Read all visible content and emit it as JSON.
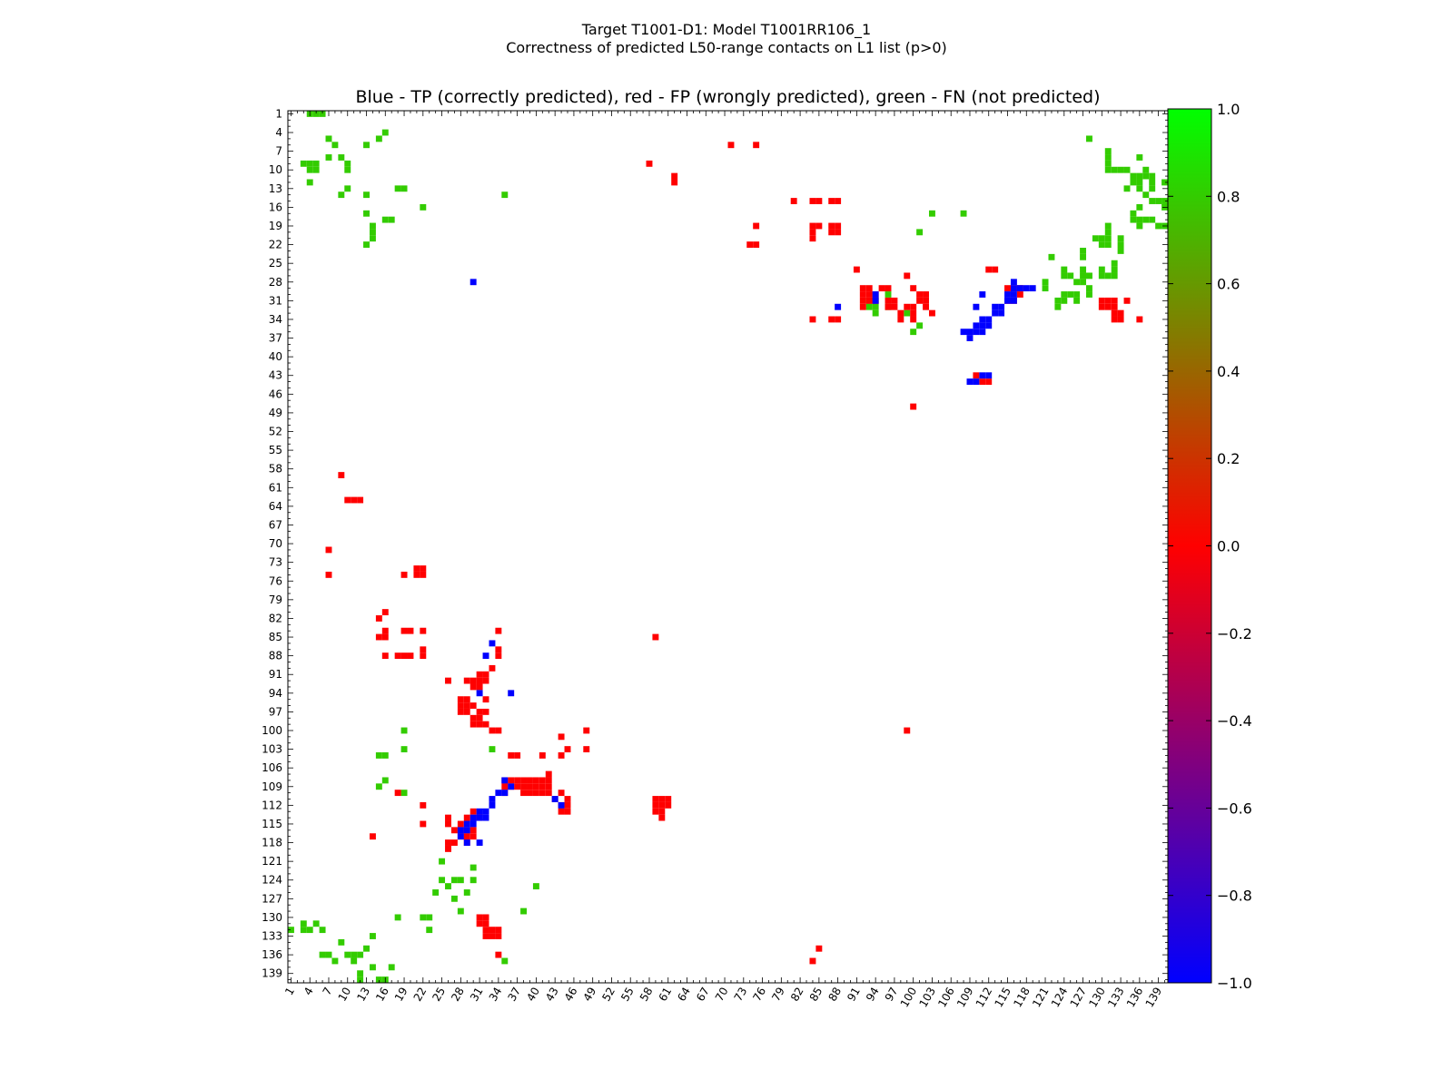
{
  "figure": {
    "title_line1": "Target T1001-D1: Model T1001RR106_1",
    "title_line2": "Correctness of predicted L50-range contacts on L1 list (p>0)"
  },
  "chart_data": {
    "type": "heatmap",
    "title": "Blue - TP (correctly predicted), red - FP (wrongly predicted), green - FN (not predicted)",
    "xlabel": "",
    "ylabel": "",
    "n": 140,
    "ticks": [
      1,
      4,
      7,
      10,
      13,
      16,
      19,
      22,
      25,
      28,
      31,
      34,
      37,
      40,
      43,
      46,
      49,
      52,
      55,
      58,
      61,
      64,
      67,
      70,
      73,
      76,
      79,
      82,
      85,
      88,
      91,
      94,
      97,
      100,
      103,
      106,
      109,
      112,
      115,
      118,
      121,
      124,
      127,
      130,
      133,
      136,
      139
    ],
    "colorbar": {
      "range": [
        -1.0,
        1.0
      ],
      "ticks": [
        "1.0",
        "0.8",
        "0.6",
        "0.4",
        "0.2",
        "0.0",
        "−0.2",
        "−0.4",
        "−0.6",
        "−0.8",
        "−1.0"
      ],
      "colors": [
        "#0000ff",
        "#ff0000",
        "#00ff00"
      ]
    },
    "colors": {
      "TP": "#0000ff",
      "FP": "#ff0000",
      "FN": "#33cc00"
    },
    "TP": [
      [
        115,
        30
      ],
      [
        116,
        29
      ],
      [
        116,
        30
      ],
      [
        116,
        31
      ],
      [
        115,
        31
      ],
      [
        114,
        32
      ],
      [
        114,
        33
      ],
      [
        113,
        32
      ],
      [
        113,
        33
      ],
      [
        112,
        34
      ],
      [
        112,
        35
      ],
      [
        111,
        34
      ],
      [
        111,
        35
      ],
      [
        110,
        35
      ],
      [
        111,
        36
      ],
      [
        110,
        36
      ],
      [
        109,
        36
      ],
      [
        109,
        37
      ],
      [
        108,
        36
      ],
      [
        117,
        29
      ],
      [
        116,
        28
      ],
      [
        112,
        43
      ],
      [
        111,
        43
      ],
      [
        110,
        44
      ],
      [
        109,
        44
      ],
      [
        88,
        32
      ],
      [
        94,
        30
      ],
      [
        94,
        31
      ],
      [
        119,
        29
      ],
      [
        118,
        29
      ],
      [
        111,
        30
      ],
      [
        110,
        32
      ],
      [
        43,
        111
      ],
      [
        44,
        112
      ],
      [
        35,
        108
      ],
      [
        36,
        109
      ],
      [
        35,
        110
      ],
      [
        34,
        110
      ],
      [
        33,
        111
      ],
      [
        33,
        112
      ],
      [
        32,
        113
      ],
      [
        31,
        113
      ],
      [
        31,
        114
      ],
      [
        30,
        114
      ],
      [
        30,
        115
      ],
      [
        29,
        115
      ],
      [
        29,
        116
      ],
      [
        28,
        116
      ],
      [
        33,
        112
      ],
      [
        32,
        114
      ],
      [
        29,
        118
      ],
      [
        28,
        117
      ],
      [
        30,
        28
      ],
      [
        35,
        110
      ],
      [
        32,
        88
      ],
      [
        36,
        94
      ],
      [
        31,
        94
      ],
      [
        33,
        86
      ],
      [
        31,
        118
      ]
    ],
    "FP": [
      [
        7,
        71
      ],
      [
        7,
        75
      ],
      [
        9,
        59
      ],
      [
        11,
        63
      ],
      [
        12,
        63
      ],
      [
        16,
        81
      ],
      [
        16,
        84
      ],
      [
        16,
        85
      ],
      [
        16,
        88
      ],
      [
        18,
        110
      ],
      [
        19,
        75
      ],
      [
        19,
        84
      ],
      [
        20,
        84
      ],
      [
        19,
        88
      ],
      [
        20,
        88
      ],
      [
        22,
        74
      ],
      [
        22,
        75
      ],
      [
        22,
        84
      ],
      [
        22,
        87
      ],
      [
        22,
        88
      ],
      [
        26,
        114
      ],
      [
        26,
        115
      ],
      [
        28,
        95
      ],
      [
        29,
        95
      ],
      [
        28,
        97
      ],
      [
        29,
        97
      ],
      [
        28,
        116
      ],
      [
        29,
        116
      ],
      [
        28,
        117
      ],
      [
        29,
        117
      ],
      [
        30,
        116
      ],
      [
        30,
        117
      ],
      [
        30,
        98
      ],
      [
        31,
        98
      ],
      [
        30,
        99
      ],
      [
        31,
        99
      ],
      [
        32,
        99
      ],
      [
        33,
        100
      ],
      [
        34,
        100
      ],
      [
        31,
        92
      ],
      [
        32,
        92
      ],
      [
        32,
        95
      ],
      [
        34,
        84
      ],
      [
        34,
        87
      ],
      [
        34,
        88
      ],
      [
        26,
        92
      ],
      [
        31,
        130
      ],
      [
        31,
        131
      ],
      [
        32,
        130
      ],
      [
        32,
        131
      ],
      [
        32,
        132
      ],
      [
        33,
        132
      ],
      [
        34,
        132
      ],
      [
        34,
        133
      ],
      [
        33,
        133
      ],
      [
        32,
        133
      ],
      [
        34,
        136
      ],
      [
        36,
        104
      ],
      [
        37,
        104
      ],
      [
        36,
        108
      ],
      [
        37,
        108
      ],
      [
        38,
        108
      ],
      [
        39,
        108
      ],
      [
        40,
        108
      ],
      [
        41,
        108
      ],
      [
        42,
        108
      ],
      [
        36,
        109
      ],
      [
        37,
        109
      ],
      [
        38,
        109
      ],
      [
        39,
        109
      ],
      [
        40,
        109
      ],
      [
        41,
        109
      ],
      [
        42,
        109
      ],
      [
        38,
        110
      ],
      [
        39,
        110
      ],
      [
        40,
        110
      ],
      [
        41,
        110
      ],
      [
        42,
        110
      ],
      [
        35,
        108
      ],
      [
        35,
        109
      ],
      [
        35,
        110
      ],
      [
        44,
        110
      ],
      [
        45,
        111
      ],
      [
        45,
        112
      ],
      [
        44,
        113
      ],
      [
        45,
        113
      ],
      [
        44,
        112
      ],
      [
        41,
        104
      ],
      [
        44,
        101
      ],
      [
        44,
        104
      ],
      [
        48,
        100
      ],
      [
        58,
        9
      ],
      [
        62,
        11
      ],
      [
        62,
        12
      ],
      [
        59,
        111
      ],
      [
        59,
        112
      ],
      [
        59,
        113
      ],
      [
        60,
        111
      ],
      [
        60,
        112
      ],
      [
        60,
        113
      ],
      [
        60,
        114
      ],
      [
        61,
        111
      ],
      [
        61,
        112
      ],
      [
        85,
        135
      ],
      [
        71,
        6
      ],
      [
        75,
        6
      ],
      [
        74,
        22
      ],
      [
        75,
        22
      ],
      [
        75,
        19
      ],
      [
        81,
        15
      ],
      [
        84,
        15
      ],
      [
        85,
        15
      ],
      [
        84,
        19
      ],
      [
        85,
        19
      ],
      [
        84,
        21
      ],
      [
        84,
        34
      ],
      [
        87,
        15
      ],
      [
        87,
        19
      ],
      [
        87,
        20
      ],
      [
        88,
        15
      ],
      [
        88,
        19
      ],
      [
        88,
        20
      ],
      [
        84,
        20
      ],
      [
        87,
        34
      ],
      [
        88,
        34
      ],
      [
        91,
        26
      ],
      [
        92,
        29
      ],
      [
        93,
        29
      ],
      [
        92,
        30
      ],
      [
        93,
        30
      ],
      [
        94,
        30
      ],
      [
        94,
        31
      ],
      [
        93,
        31
      ],
      [
        95,
        29
      ],
      [
        96,
        29
      ],
      [
        96,
        31
      ],
      [
        97,
        31
      ],
      [
        96,
        32
      ],
      [
        97,
        32
      ],
      [
        98,
        33
      ],
      [
        98,
        34
      ],
      [
        100,
        29
      ],
      [
        101,
        31
      ],
      [
        102,
        32
      ],
      [
        103,
        33
      ],
      [
        99,
        100
      ],
      [
        92,
        31
      ],
      [
        92,
        32
      ],
      [
        110,
        43
      ],
      [
        111,
        44
      ],
      [
        112,
        44
      ],
      [
        99,
        27
      ],
      [
        96,
        31
      ],
      [
        99,
        32
      ],
      [
        100,
        32
      ],
      [
        100,
        33
      ],
      [
        100,
        34
      ],
      [
        101,
        30
      ],
      [
        102,
        30
      ],
      [
        102,
        31
      ],
      [
        112,
        26
      ],
      [
        113,
        26
      ],
      [
        115,
        29
      ],
      [
        116,
        29
      ],
      [
        115,
        31
      ],
      [
        116,
        31
      ],
      [
        117,
        29
      ],
      [
        117,
        30
      ],
      [
        130,
        31
      ],
      [
        131,
        31
      ],
      [
        132,
        31
      ],
      [
        130,
        32
      ],
      [
        131,
        32
      ],
      [
        132,
        32
      ],
      [
        133,
        33
      ],
      [
        133,
        34
      ],
      [
        132,
        34
      ],
      [
        132,
        33
      ],
      [
        134,
        31
      ],
      [
        136,
        34
      ],
      [
        100,
        48
      ],
      [
        59,
        85
      ],
      [
        84,
        137
      ],
      [
        30,
        113
      ],
      [
        29,
        114
      ],
      [
        28,
        115
      ],
      [
        27,
        116
      ],
      [
        28,
        117
      ],
      [
        27,
        118
      ],
      [
        29,
        118
      ],
      [
        33,
        90
      ],
      [
        32,
        91
      ],
      [
        31,
        91
      ],
      [
        30,
        92
      ],
      [
        29,
        92
      ],
      [
        30,
        93
      ],
      [
        31,
        93
      ],
      [
        28,
        95
      ],
      [
        28,
        96
      ],
      [
        29,
        96
      ],
      [
        30,
        96
      ],
      [
        31,
        97
      ],
      [
        32,
        97
      ],
      [
        31,
        98
      ],
      [
        26,
        118
      ],
      [
        26,
        119
      ],
      [
        22,
        112
      ],
      [
        22,
        115
      ],
      [
        16,
        85
      ],
      [
        15,
        85
      ],
      [
        18,
        88
      ],
      [
        16,
        88
      ],
      [
        19,
        75
      ],
      [
        21,
        74
      ],
      [
        21,
        75
      ],
      [
        15,
        82
      ],
      [
        7,
        75
      ],
      [
        10,
        63
      ],
      [
        14,
        117
      ],
      [
        48,
        103
      ],
      [
        45,
        103
      ],
      [
        43,
        111
      ],
      [
        42,
        107
      ],
      [
        31,
        114
      ],
      [
        30,
        116
      ],
      [
        29,
        117
      ]
    ],
    "FN": [
      [
        1,
        132
      ],
      [
        3,
        131
      ],
      [
        3,
        132
      ],
      [
        4,
        132
      ],
      [
        5,
        131
      ],
      [
        6,
        136
      ],
      [
        7,
        136
      ],
      [
        8,
        137
      ],
      [
        9,
        134
      ],
      [
        10,
        136
      ],
      [
        11,
        136
      ],
      [
        11,
        137
      ],
      [
        12,
        136
      ],
      [
        13,
        135
      ],
      [
        14,
        133
      ],
      [
        15,
        104
      ],
      [
        15,
        109
      ],
      [
        18,
        130
      ],
      [
        19,
        100
      ],
      [
        22,
        130
      ],
      [
        23,
        132
      ],
      [
        24,
        126
      ],
      [
        25,
        121
      ],
      [
        25,
        124
      ],
      [
        26,
        125
      ],
      [
        27,
        124
      ],
      [
        27,
        127
      ],
      [
        28,
        124
      ],
      [
        28,
        129
      ],
      [
        29,
        126
      ],
      [
        30,
        122
      ],
      [
        30,
        124
      ],
      [
        33,
        103
      ],
      [
        35,
        137
      ],
      [
        38,
        129
      ],
      [
        40,
        125
      ],
      [
        17,
        138
      ],
      [
        14,
        138
      ],
      [
        12,
        139
      ],
      [
        10,
        136
      ],
      [
        15,
        140
      ],
      [
        16,
        140
      ],
      [
        6,
        132
      ],
      [
        3,
        131
      ],
      [
        12,
        140
      ],
      [
        35,
        14
      ],
      [
        23,
        130
      ],
      [
        22,
        16
      ],
      [
        19,
        103
      ],
      [
        19,
        110
      ],
      [
        16,
        104
      ],
      [
        16,
        108
      ],
      [
        8,
        6
      ],
      [
        7,
        5
      ],
      [
        4,
        1
      ],
      [
        5,
        1
      ],
      [
        6,
        1
      ],
      [
        9,
        8
      ],
      [
        13,
        6
      ],
      [
        15,
        5
      ],
      [
        16,
        4
      ],
      [
        13,
        14
      ],
      [
        18,
        13
      ],
      [
        19,
        13
      ],
      [
        13,
        17
      ],
      [
        16,
        18
      ],
      [
        17,
        18
      ],
      [
        13,
        22
      ],
      [
        14,
        19
      ],
      [
        14,
        20
      ],
      [
        14,
        21
      ],
      [
        13,
        22
      ],
      [
        9,
        14
      ],
      [
        10,
        13
      ],
      [
        10,
        10
      ],
      [
        10,
        9
      ],
      [
        7,
        8
      ],
      [
        5,
        9
      ],
      [
        4,
        9
      ],
      [
        4,
        10
      ],
      [
        5,
        10
      ],
      [
        4,
        12
      ],
      [
        3,
        9
      ],
      [
        130,
        21
      ],
      [
        131,
        21
      ],
      [
        129,
        21
      ],
      [
        130,
        22
      ],
      [
        131,
        22
      ],
      [
        130,
        26
      ],
      [
        130,
        27
      ],
      [
        131,
        27
      ],
      [
        132,
        25
      ],
      [
        132,
        26
      ],
      [
        132,
        27
      ],
      [
        131,
        19
      ],
      [
        131,
        20
      ],
      [
        133,
        21
      ],
      [
        133,
        22
      ],
      [
        133,
        23
      ],
      [
        128,
        5
      ],
      [
        131,
        7
      ],
      [
        131,
        8
      ],
      [
        131,
        9
      ],
      [
        131,
        10
      ],
      [
        132,
        10
      ],
      [
        133,
        10
      ],
      [
        136,
        11
      ],
      [
        136,
        12
      ],
      [
        136,
        13
      ],
      [
        137,
        11
      ],
      [
        137,
        10
      ],
      [
        138,
        11
      ],
      [
        138,
        12
      ],
      [
        138,
        13
      ],
      [
        137,
        14
      ],
      [
        138,
        15
      ],
      [
        139,
        15
      ],
      [
        140,
        15
      ],
      [
        140,
        12
      ],
      [
        140,
        16
      ],
      [
        139,
        19
      ],
      [
        140,
        19
      ],
      [
        136,
        19
      ],
      [
        136,
        18
      ],
      [
        137,
        18
      ],
      [
        138,
        18
      ],
      [
        135,
        11
      ],
      [
        134,
        10
      ],
      [
        136,
        8
      ],
      [
        134,
        13
      ],
      [
        135,
        12
      ],
      [
        136,
        16
      ],
      [
        135,
        17
      ],
      [
        135,
        18
      ],
      [
        124,
        30
      ],
      [
        124,
        31
      ],
      [
        121,
        28
      ],
      [
        121,
        29
      ],
      [
        123,
        31
      ],
      [
        123,
        32
      ],
      [
        126,
        31
      ],
      [
        125,
        30
      ],
      [
        126,
        30
      ],
      [
        126,
        28
      ],
      [
        127,
        28
      ],
      [
        128,
        30
      ],
      [
        128,
        29
      ],
      [
        127,
        26
      ],
      [
        127,
        27
      ],
      [
        128,
        27
      ],
      [
        127,
        23
      ],
      [
        127,
        24
      ],
      [
        122,
        24
      ],
      [
        124,
        26
      ],
      [
        124,
        27
      ],
      [
        125,
        27
      ],
      [
        103,
        17
      ],
      [
        108,
        17
      ],
      [
        99,
        33
      ],
      [
        101,
        35
      ],
      [
        100,
        36
      ],
      [
        93,
        31
      ],
      [
        93,
        32
      ],
      [
        94,
        32
      ],
      [
        94,
        33
      ],
      [
        101,
        20
      ],
      [
        96,
        32
      ],
      [
        94,
        31
      ],
      [
        96,
        30
      ]
    ]
  }
}
